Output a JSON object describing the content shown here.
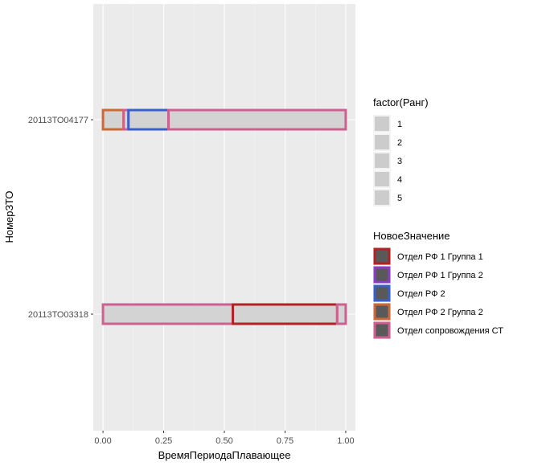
{
  "chart_data": {
    "type": "bar",
    "orientation": "horizontal",
    "xlabel": "ВремяПериодаПлавающее",
    "ylabel": "НомерЗТО",
    "xlim": [
      -0.04,
      1.04
    ],
    "x_ticks": [
      0.0,
      0.25,
      0.5,
      0.75,
      1.0
    ],
    "x_tick_labels": [
      "0.00",
      "0.25",
      "0.50",
      "0.75",
      "1.00"
    ],
    "categories": [
      "20113ТО04177",
      "20113ТО03318"
    ],
    "grid": true,
    "legend_position": "right",
    "bars": [
      {
        "category": "20113ТО04177",
        "start": 0.0,
        "end": 0.085,
        "group": "Отдел РФ 2 Группа 2"
      },
      {
        "category": "20113ТО04177",
        "start": 0.085,
        "end": 0.105,
        "group": "Отдел сопровождения СТ"
      },
      {
        "category": "20113ТО04177",
        "start": 0.105,
        "end": 0.27,
        "group": "Отдел РФ 2"
      },
      {
        "category": "20113ТО04177",
        "start": 0.27,
        "end": 1.0,
        "group": "Отдел сопровождения СТ"
      },
      {
        "category": "20113ТО03318",
        "start": 0.0,
        "end": 0.535,
        "group": "Отдел сопровождения СТ"
      },
      {
        "category": "20113ТО03318",
        "start": 0.535,
        "end": 0.965,
        "group": "Отдел РФ 1 Группа 1"
      },
      {
        "category": "20113ТО03318",
        "start": 0.965,
        "end": 1.0,
        "group": "Отдел сопровождения СТ"
      }
    ],
    "legends": [
      {
        "title": "factor(Ранг)",
        "entries": [
          "1",
          "2",
          "3",
          "4",
          "5"
        ]
      },
      {
        "title": "НовоеЗначение",
        "entries": [
          {
            "label": "Отдел РФ 1 Группа 1",
            "color": "#B22222"
          },
          {
            "label": "Отдел РФ 1 Группа 2",
            "color": "#8E3CC4"
          },
          {
            "label": "Отдел РФ 2",
            "color": "#3A5FCD"
          },
          {
            "label": "Отдел РФ 2 Группа 2",
            "color": "#CD6839"
          },
          {
            "label": "Отдел сопровождения СТ",
            "color": "#CD6090"
          }
        ]
      }
    ],
    "panel_color": "#EBEBEB",
    "bar_fill": "#D3D3D3"
  }
}
